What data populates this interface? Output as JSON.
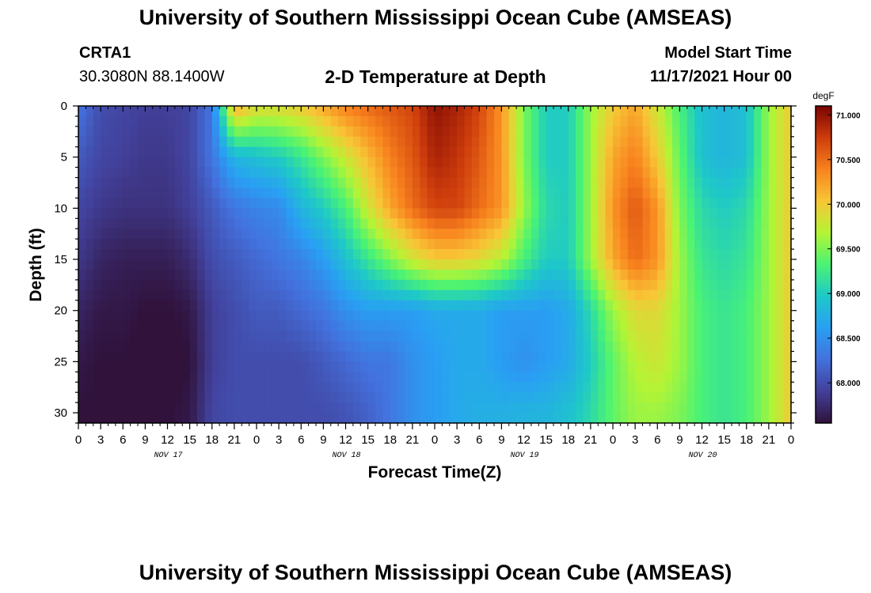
{
  "header": {
    "title": "University of Southern Mississippi Ocean Cube (AMSEAS)",
    "station_id": "CRTA1",
    "station_coords": "30.3080N  88.1400W",
    "plot_title": "2-D Temperature at Depth",
    "model_start_label": "Model Start Time",
    "model_start_value": "11/17/2021 Hour 00"
  },
  "footer": {
    "title_repeat": "University of Southern Mississippi Ocean Cube (AMSEAS)"
  },
  "chart_data": {
    "type": "heatmap",
    "title": "2-D Temperature at Depth",
    "xlabel": "Forecast Time(Z)",
    "ylabel": "Depth (ft)",
    "colorbar_unit": "degF",
    "colorbar_ticks": [
      "71.000",
      "70.500",
      "70.000",
      "69.500",
      "69.000",
      "68.500",
      "68.000"
    ],
    "color_range": [
      67.55,
      71.1
    ],
    "x_hours_range": [
      0,
      96
    ],
    "y_range": [
      0,
      31
    ],
    "y_ticks": [
      0,
      5,
      10,
      15,
      20,
      25,
      30
    ],
    "x_tick_labels": [
      "0",
      "3",
      "6",
      "9",
      "12",
      "15",
      "18",
      "21",
      "0",
      "3",
      "6",
      "9",
      "12",
      "15",
      "18",
      "21",
      "0",
      "3",
      "6",
      "9",
      "12",
      "15",
      "18",
      "21",
      "0",
      "3",
      "6",
      "9",
      "12",
      "15",
      "18",
      "21",
      "0"
    ],
    "date_labels": [
      "NOV 17",
      "NOV 18",
      "NOV 19",
      "NOV 20"
    ],
    "depth_levels_ft": [
      0,
      5,
      10,
      15,
      20,
      25,
      30
    ],
    "time_hours": [
      0,
      3,
      6,
      9,
      12,
      15,
      18,
      21,
      24,
      27,
      30,
      33,
      36,
      39,
      42,
      45,
      48,
      51,
      54,
      57,
      60,
      63,
      66,
      69,
      72,
      75,
      78,
      81,
      84,
      87,
      90,
      93,
      96
    ],
    "temperature_degF": [
      [
        68.3,
        68.0,
        67.95,
        67.9,
        67.9,
        67.95,
        68.3,
        70.2,
        69.9,
        69.9,
        70.0,
        70.2,
        70.4,
        70.5,
        70.6,
        70.7,
        71.0,
        70.9,
        70.7,
        70.3,
        69.5,
        69.0,
        69.0,
        69.6,
        70.0,
        70.2,
        69.8,
        69.3,
        68.9,
        68.8,
        68.9,
        69.6,
        70.0
      ],
      [
        68.1,
        67.95,
        67.9,
        67.85,
        67.85,
        67.95,
        68.3,
        68.8,
        68.9,
        69.0,
        69.2,
        69.5,
        69.8,
        70.1,
        70.4,
        70.6,
        70.9,
        70.8,
        70.6,
        70.3,
        69.5,
        69.0,
        69.0,
        69.6,
        70.2,
        70.4,
        70.0,
        69.4,
        68.9,
        68.8,
        68.9,
        69.6,
        70.0
      ],
      [
        67.95,
        67.85,
        67.8,
        67.8,
        67.8,
        67.9,
        68.1,
        68.3,
        68.4,
        68.45,
        68.8,
        69.0,
        69.3,
        69.8,
        70.2,
        70.5,
        70.7,
        70.7,
        70.5,
        70.3,
        69.6,
        69.1,
        69.0,
        69.6,
        70.3,
        70.6,
        70.3,
        69.5,
        69.1,
        69.0,
        69.1,
        69.6,
        70.0
      ],
      [
        67.85,
        67.7,
        67.65,
        67.65,
        67.65,
        67.75,
        68.0,
        68.1,
        68.2,
        68.3,
        68.4,
        68.6,
        68.9,
        69.2,
        69.5,
        69.8,
        70.0,
        70.0,
        69.9,
        69.7,
        69.3,
        69.0,
        69.0,
        69.6,
        70.2,
        70.5,
        70.3,
        69.6,
        69.2,
        69.1,
        69.2,
        69.6,
        70.0
      ],
      [
        67.7,
        67.6,
        67.6,
        67.55,
        67.55,
        67.6,
        67.9,
        68.0,
        68.1,
        68.1,
        68.2,
        68.3,
        68.5,
        68.6,
        68.6,
        68.6,
        68.7,
        68.7,
        68.7,
        68.6,
        68.6,
        68.6,
        68.7,
        69.1,
        69.6,
        69.9,
        69.9,
        69.6,
        69.3,
        69.2,
        69.3,
        69.6,
        70.0
      ],
      [
        67.6,
        67.55,
        67.55,
        67.5,
        67.5,
        67.55,
        67.9,
        68.0,
        68.0,
        68.0,
        68.0,
        68.1,
        68.2,
        68.3,
        68.3,
        68.5,
        68.6,
        68.7,
        68.7,
        68.6,
        68.5,
        68.6,
        68.7,
        69.0,
        69.4,
        69.7,
        69.8,
        69.6,
        69.3,
        69.2,
        69.3,
        69.6,
        70.0
      ],
      [
        67.55,
        67.55,
        67.55,
        67.55,
        67.55,
        67.6,
        67.95,
        68.0,
        68.0,
        68.0,
        68.0,
        68.0,
        68.05,
        68.15,
        68.3,
        68.5,
        68.6,
        68.7,
        68.75,
        68.75,
        68.8,
        68.8,
        68.9,
        69.1,
        69.4,
        69.6,
        69.6,
        69.5,
        69.3,
        69.2,
        69.3,
        69.6,
        70.0
      ]
    ]
  }
}
